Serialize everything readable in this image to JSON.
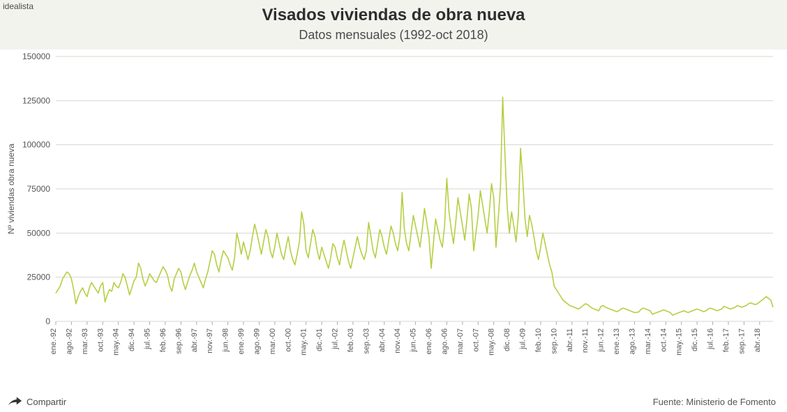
{
  "brand": "idealista",
  "title": "Visados viviendas de obra nueva",
  "subtitle": "Datos mensuales (1992-oct 2018)",
  "share_label": "Compartir",
  "source_label": "Fuente: Ministerio de Fomento",
  "chart": {
    "type": "line",
    "y_axis_label": "Nº viviendas obra nueva",
    "line_color": "#b4cf43",
    "line_width": 1.6,
    "grid_color": "#d6d6d0",
    "background_color": "#ffffff",
    "label_color": "#555555",
    "ylim": [
      0,
      150000
    ],
    "ytick_step": 25000,
    "y_ticks": [
      "0",
      "25000",
      "50000",
      "75000",
      "100000",
      "125000",
      "150000"
    ],
    "x_labels": [
      "ene.-92",
      "ago.-92",
      "mar.-93",
      "oct.-93",
      "may.-94",
      "dic.-94",
      "jul.-95",
      "feb.-96",
      "sep.-96",
      "abr.-97",
      "nov.-97",
      "jun.-98",
      "ene.-99",
      "ago.-99",
      "mar.-00",
      "oct.-00",
      "may.-01",
      "dic.-01",
      "jul.-02",
      "feb.-03",
      "sep.-03",
      "abr.-04",
      "nov.-04",
      "jun.-05",
      "ene.-06",
      "ago.-06",
      "mar.-07",
      "oct.-07",
      "may.-08",
      "dic.-08",
      "jul.-09",
      "feb.-10",
      "sep.-10",
      "abr.-11",
      "nov.-11",
      "jun.-12",
      "ene.-13",
      "ago.-13",
      "mar.-14",
      "oct.-14",
      "may.-15",
      "dic.-15",
      "jul.-16",
      "feb.-17",
      "sep.-17",
      "abr.-18"
    ],
    "index_range": [
      0,
      321
    ],
    "values": [
      16000,
      18000,
      20000,
      24000,
      26000,
      28000,
      27000,
      24000,
      18000,
      10000,
      14000,
      17000,
      19000,
      16000,
      14000,
      19000,
      22000,
      20000,
      18000,
      16000,
      20000,
      22000,
      11000,
      15000,
      18000,
      17000,
      22000,
      20000,
      19000,
      22000,
      27000,
      25000,
      20000,
      15000,
      19000,
      23000,
      25000,
      33000,
      30000,
      24000,
      20000,
      23000,
      27000,
      25000,
      23000,
      22000,
      25000,
      28000,
      31000,
      29000,
      26000,
      20000,
      17000,
      24000,
      27000,
      30000,
      28000,
      22000,
      18000,
      22000,
      26000,
      29000,
      33000,
      28000,
      25000,
      22000,
      19000,
      24000,
      28000,
      34000,
      40000,
      38000,
      32000,
      28000,
      35000,
      40000,
      38000,
      36000,
      32000,
      29000,
      36000,
      50000,
      45000,
      38000,
      45000,
      40000,
      35000,
      40000,
      48000,
      55000,
      50000,
      44000,
      38000,
      45000,
      52000,
      48000,
      40000,
      36000,
      42000,
      50000,
      44000,
      38000,
      35000,
      42000,
      48000,
      40000,
      35000,
      32000,
      38000,
      45000,
      62000,
      55000,
      40000,
      36000,
      44000,
      52000,
      48000,
      40000,
      35000,
      42000,
      38000,
      34000,
      30000,
      36000,
      44000,
      42000,
      36000,
      32000,
      40000,
      46000,
      40000,
      34000,
      30000,
      36000,
      42000,
      48000,
      42000,
      38000,
      35000,
      40000,
      56000,
      48000,
      40000,
      36000,
      44000,
      52000,
      48000,
      42000,
      38000,
      46000,
      54000,
      50000,
      44000,
      40000,
      48000,
      73000,
      52000,
      44000,
      40000,
      50000,
      60000,
      54000,
      48000,
      42000,
      52000,
      64000,
      56000,
      48000,
      30000,
      44000,
      58000,
      52000,
      46000,
      42000,
      54000,
      81000,
      62000,
      52000,
      44000,
      56000,
      70000,
      62000,
      54000,
      46000,
      58000,
      72000,
      64000,
      40000,
      50000,
      60000,
      74000,
      66000,
      58000,
      50000,
      62000,
      78000,
      70000,
      42000,
      58000,
      76000,
      127000,
      95000,
      65000,
      50000,
      62000,
      54000,
      45000,
      60000,
      98000,
      80000,
      58000,
      48000,
      60000,
      55000,
      48000,
      40000,
      35000,
      42000,
      50000,
      44000,
      38000,
      32000,
      28000,
      20000,
      18000,
      16000,
      14000,
      12000,
      11000,
      10000,
      9000,
      8500,
      8000,
      7500,
      7000,
      8000,
      9000,
      10000,
      9500,
      8500,
      7500,
      7000,
      6500,
      6000,
      8500,
      9000,
      8000,
      7500,
      7000,
      6500,
      6000,
      5500,
      6000,
      7000,
      7500,
      7000,
      6500,
      6000,
      5500,
      5000,
      5000,
      5500,
      7000,
      7500,
      7000,
      6500,
      6000,
      4000,
      4500,
      5000,
      5500,
      6000,
      6500,
      6000,
      5500,
      5000,
      3500,
      4000,
      4500,
      5000,
      5500,
      6000,
      5500,
      5000,
      5500,
      6000,
      6500,
      7000,
      6500,
      6000,
      5500,
      6000,
      7000,
      7500,
      7000,
      6500,
      6000,
      6500,
      7000,
      8500,
      8000,
      7500,
      7000,
      7500,
      8000,
      9000,
      8500,
      8000,
      8500,
      9000,
      10000,
      10500,
      10000,
      9500,
      10000,
      11000,
      12000,
      13000,
      14000,
      13000,
      12000,
      8000
    ]
  }
}
